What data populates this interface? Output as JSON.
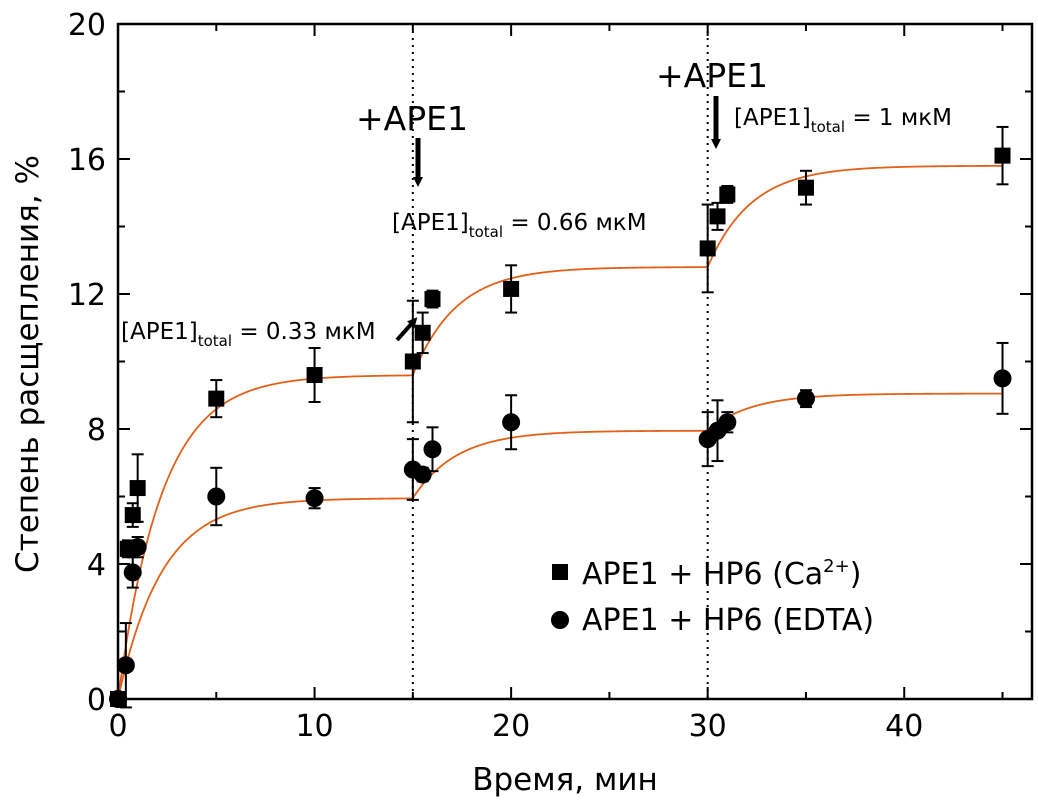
{
  "chart_data": {
    "type": "scatter",
    "title": "",
    "xlabel": "Время, мин",
    "ylabel": "Степень расщепления, %",
    "xlim": [
      0,
      46.5
    ],
    "ylim": [
      0,
      20
    ],
    "xticks": [
      0,
      10,
      20,
      30,
      40
    ],
    "yticks": [
      0,
      4,
      8,
      12,
      16,
      20
    ],
    "xtick_labels": [
      "0",
      "10",
      "20",
      "30",
      "40"
    ],
    "ytick_labels": [
      "0",
      "4",
      "8",
      "12",
      "16",
      "20"
    ],
    "grid": false,
    "legend_position": "bottom-right",
    "vlines": [
      15,
      30
    ],
    "series": [
      {
        "name": "APE1 + HP6 (Ca2+)",
        "legend_main": "APE1 + HP6 (Ca",
        "legend_sup": "2+",
        "legend_tail": ")",
        "marker": "square",
        "color": "#000000",
        "x": [
          0,
          0.5,
          0.75,
          1,
          5,
          10,
          15,
          15.5,
          16,
          20,
          30,
          30.5,
          31,
          35,
          45
        ],
        "y": [
          0,
          4.45,
          5.45,
          6.25,
          8.9,
          9.6,
          10.0,
          10.85,
          11.85,
          12.15,
          13.35,
          14.3,
          14.95,
          15.15,
          16.1
        ],
        "err": [
          0.15,
          0.25,
          0.35,
          1.0,
          0.55,
          0.8,
          1.8,
          0.6,
          0.25,
          0.7,
          1.3,
          0.4,
          0.25,
          0.5,
          0.85
        ],
        "fit": {
          "color": "#e2611a",
          "segments": [
            [
              0,
              15,
              0,
              9.6,
              0.45
            ],
            [
              15,
              30,
              9.6,
              12.8,
              0.45
            ],
            [
              30,
              45,
              12.8,
              15.8,
              0.45
            ]
          ]
        }
      },
      {
        "name": "APE1 + HP6 (EDTA)",
        "legend_main": "APE1 + HP6 (EDTA)",
        "legend_sup": "",
        "legend_tail": "",
        "marker": "circle",
        "color": "#000000",
        "x": [
          0,
          0.4,
          0.75,
          1,
          5,
          10,
          15,
          15.5,
          16,
          20,
          30,
          30.5,
          31,
          35,
          45
        ],
        "y": [
          0,
          1.0,
          3.75,
          4.5,
          6.0,
          5.95,
          6.8,
          6.65,
          7.4,
          8.2,
          7.7,
          7.95,
          8.2,
          8.9,
          9.5
        ],
        "err": [
          0.1,
          1.25,
          0.45,
          0.3,
          0.85,
          0.3,
          0.9,
          0.2,
          0.65,
          0.8,
          0.8,
          0.9,
          0.3,
          0.25,
          1.05
        ],
        "fit": {
          "color": "#e2611a",
          "segments": [
            [
              0,
              15,
              0,
              5.95,
              0.45
            ],
            [
              15,
              30,
              5.95,
              7.95,
              0.45
            ],
            [
              30,
              45,
              7.95,
              9.05,
              0.45
            ]
          ]
        }
      }
    ],
    "annotations": [
      {
        "text": "+APE1",
        "x": 15,
        "kind": "arrow-label"
      },
      {
        "text": "+APE1",
        "x": 30,
        "kind": "arrow-label"
      },
      {
        "base": "[APE1]",
        "sub": "total",
        "rest": " = 0.33 мкМ"
      },
      {
        "base": "[APE1]",
        "sub": "total",
        "rest": " = 0.66 мкМ"
      },
      {
        "base": "[APE1]",
        "sub": "total",
        "rest": " = 1 мкМ"
      }
    ]
  }
}
